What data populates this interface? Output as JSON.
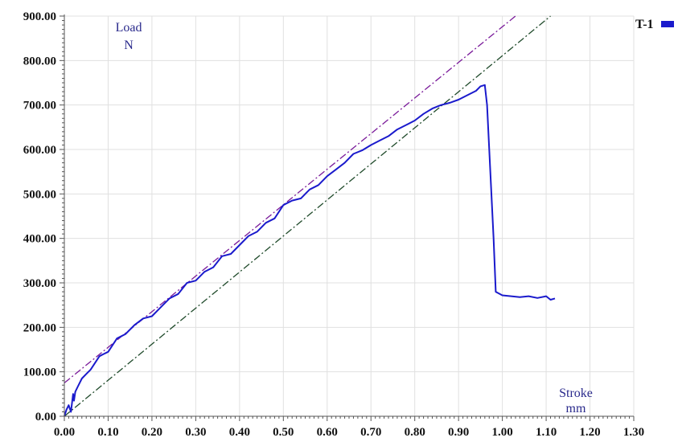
{
  "chart_data": {
    "type": "line",
    "xlabel": "Stroke",
    "xunit": "mm",
    "ylabel": "Load",
    "yunit": "N",
    "xlim": [
      0.0,
      1.3
    ],
    "ylim": [
      0.0,
      900.0
    ],
    "x_ticks": [
      0.0,
      0.1,
      0.2,
      0.3,
      0.4,
      0.5,
      0.6,
      0.7,
      0.8,
      0.9,
      1.0,
      1.1,
      1.2,
      1.3
    ],
    "y_ticks": [
      0,
      100,
      200,
      300,
      400,
      500,
      600,
      700,
      800,
      900
    ],
    "x_tick_labels": [
      "0.00",
      "0.10",
      "0.20",
      "0.30",
      "0.40",
      "0.50",
      "0.60",
      "0.70",
      "0.80",
      "0.90",
      "1.00",
      "1.10",
      "1.20",
      "1.30"
    ],
    "y_tick_labels": [
      "0.00",
      "100.00",
      "200.00",
      "300.00",
      "400.00",
      "500.00",
      "600.00",
      "700.00",
      "800.00",
      "900.00"
    ],
    "grid": true,
    "legend_position": "top-right",
    "series": [
      {
        "name": "T-1",
        "color": "#1a1acc",
        "x": [
          0.0,
          0.005,
          0.01,
          0.015,
          0.02,
          0.022,
          0.025,
          0.03,
          0.04,
          0.05,
          0.06,
          0.08,
          0.09,
          0.1,
          0.12,
          0.14,
          0.16,
          0.18,
          0.2,
          0.22,
          0.24,
          0.26,
          0.28,
          0.3,
          0.32,
          0.34,
          0.36,
          0.38,
          0.4,
          0.42,
          0.44,
          0.46,
          0.48,
          0.5,
          0.52,
          0.54,
          0.56,
          0.58,
          0.6,
          0.62,
          0.64,
          0.66,
          0.68,
          0.7,
          0.72,
          0.74,
          0.76,
          0.78,
          0.8,
          0.82,
          0.84,
          0.86,
          0.88,
          0.9,
          0.92,
          0.94,
          0.95,
          0.96,
          0.965,
          0.97,
          0.98,
          0.985,
          1.0,
          1.02,
          1.04,
          1.06,
          1.08,
          1.1,
          1.11,
          1.12
        ],
        "y": [
          0,
          15,
          25,
          10,
          50,
          35,
          55,
          65,
          85,
          95,
          105,
          135,
          140,
          145,
          175,
          185,
          205,
          220,
          225,
          245,
          265,
          275,
          300,
          305,
          325,
          335,
          360,
          365,
          385,
          405,
          415,
          435,
          445,
          475,
          485,
          490,
          510,
          520,
          540,
          555,
          570,
          590,
          598,
          610,
          620,
          630,
          645,
          655,
          665,
          680,
          692,
          700,
          705,
          712,
          722,
          732,
          742,
          745,
          700,
          600,
          400,
          280,
          272,
          270,
          268,
          270,
          266,
          270,
          262,
          265
        ]
      }
    ],
    "reference_lines": [
      {
        "color": "#7a1a9a",
        "x": [
          0.0,
          1.03
        ],
        "y": [
          75,
          900
        ]
      },
      {
        "color": "#1f4a2a",
        "x": [
          0.0,
          1.11
        ],
        "y": [
          0,
          900
        ]
      }
    ]
  }
}
